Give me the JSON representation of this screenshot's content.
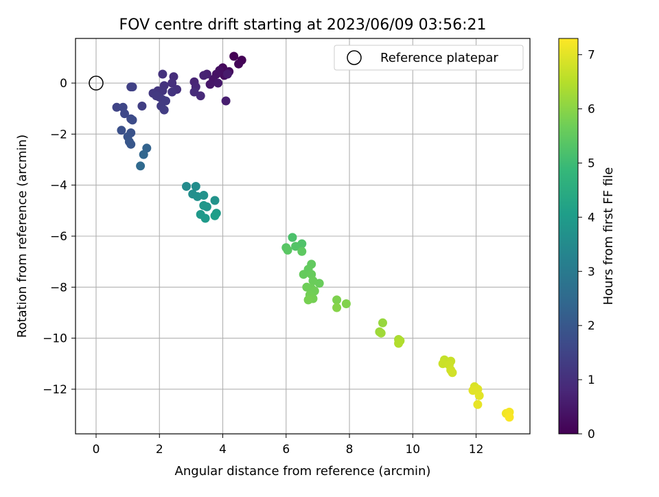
{
  "chart_data": {
    "type": "scatter",
    "title": "FOV centre drift starting at 2023/06/09 03:56:21",
    "xlabel": "Angular distance from reference (arcmin)",
    "ylabel": "Rotation from reference (arcmin)",
    "xlim": [
      -0.65,
      13.7
    ],
    "ylim": [
      -13.75,
      1.75
    ],
    "xticks": [
      0,
      2,
      4,
      6,
      8,
      10,
      12
    ],
    "yticks": [
      0,
      -2,
      -4,
      -6,
      -8,
      -10,
      -12
    ],
    "grid": true,
    "legend": {
      "placement": "top-right",
      "entries": [
        "Reference platepar"
      ]
    },
    "reference_point": {
      "x": 0,
      "y": 0,
      "label": "Reference platepar"
    },
    "colorbar": {
      "label": "Hours from first FF file",
      "range": [
        0,
        7.3
      ],
      "ticks": [
        0,
        1,
        2,
        3,
        4,
        5,
        6,
        7
      ],
      "colormap": "viridis",
      "colors": [
        "#440154",
        "#482878",
        "#3e4989",
        "#31688e",
        "#26828e",
        "#1f9e89",
        "#35b779",
        "#6ece58",
        "#b5de2b",
        "#fde725"
      ]
    },
    "series": [
      {
        "points": [
          [
            4.35,
            1.05,
            0.0
          ],
          [
            4.6,
            0.9,
            0.05
          ],
          [
            4.5,
            0.75,
            0.1
          ],
          [
            4.0,
            0.6,
            0.15
          ],
          [
            4.2,
            0.45,
            0.2
          ],
          [
            4.05,
            0.3,
            0.25
          ],
          [
            3.9,
            0.5,
            0.3
          ],
          [
            3.8,
            0.35,
            0.35
          ],
          [
            3.7,
            0.15,
            0.4
          ],
          [
            3.6,
            -0.05,
            0.45
          ],
          [
            3.85,
            0.0,
            0.5
          ],
          [
            4.15,
            0.35,
            0.55
          ],
          [
            4.1,
            -0.7,
            0.6
          ],
          [
            3.5,
            0.35,
            0.65
          ],
          [
            3.4,
            0.3,
            0.7
          ],
          [
            3.1,
            0.05,
            0.75
          ],
          [
            3.15,
            -0.15,
            0.8
          ],
          [
            3.3,
            -0.5,
            0.85
          ],
          [
            3.1,
            -0.35,
            0.9
          ],
          [
            2.45,
            0.25,
            0.95
          ],
          [
            2.4,
            0.0,
            1.0
          ],
          [
            2.55,
            -0.25,
            1.02
          ],
          [
            2.1,
            0.35,
            1.05
          ],
          [
            2.15,
            -0.1,
            1.08
          ],
          [
            2.4,
            -0.35,
            1.1
          ],
          [
            2.1,
            -0.3,
            1.12
          ],
          [
            1.95,
            -0.3,
            1.15
          ],
          [
            1.8,
            -0.4,
            1.18
          ],
          [
            2.0,
            -0.55,
            1.2
          ],
          [
            1.9,
            -0.5,
            1.22
          ],
          [
            2.1,
            -0.65,
            1.25
          ],
          [
            2.2,
            -0.7,
            1.28
          ],
          [
            2.05,
            -0.9,
            1.3
          ],
          [
            2.15,
            -1.05,
            1.32
          ],
          [
            1.45,
            -0.9,
            1.35
          ],
          [
            1.1,
            -0.15,
            1.4
          ],
          [
            1.15,
            -0.15,
            1.42
          ],
          [
            0.65,
            -0.95,
            1.5
          ],
          [
            0.85,
            -0.95,
            1.55
          ],
          [
            0.9,
            -1.2,
            1.6
          ],
          [
            1.1,
            -1.4,
            1.65
          ],
          [
            1.15,
            -1.45,
            1.7
          ],
          [
            0.8,
            -1.85,
            1.8
          ],
          [
            1.1,
            -1.95,
            1.85
          ],
          [
            1.0,
            -2.1,
            1.9
          ],
          [
            1.05,
            -2.3,
            1.95
          ],
          [
            1.1,
            -2.4,
            2.0
          ],
          [
            1.6,
            -2.55,
            2.3
          ],
          [
            1.5,
            -2.8,
            2.4
          ],
          [
            1.4,
            -3.25,
            2.5
          ],
          [
            2.85,
            -4.05,
            3.5
          ],
          [
            3.15,
            -4.05,
            3.55
          ],
          [
            3.05,
            -4.35,
            3.6
          ],
          [
            3.2,
            -4.45,
            3.65
          ],
          [
            3.4,
            -4.4,
            3.7
          ],
          [
            3.75,
            -4.6,
            3.75
          ],
          [
            3.5,
            -4.85,
            3.8
          ],
          [
            3.4,
            -4.8,
            3.85
          ],
          [
            3.3,
            -5.15,
            3.9
          ],
          [
            3.45,
            -5.3,
            3.95
          ],
          [
            3.8,
            -5.1,
            4.0
          ],
          [
            3.75,
            -5.2,
            4.05
          ],
          [
            6.2,
            -6.05,
            5.2
          ],
          [
            6.5,
            -6.3,
            5.25
          ],
          [
            6.3,
            -6.4,
            5.3
          ],
          [
            6.0,
            -6.45,
            5.35
          ],
          [
            6.05,
            -6.55,
            5.4
          ],
          [
            6.5,
            -6.6,
            5.45
          ],
          [
            6.8,
            -7.1,
            5.5
          ],
          [
            6.7,
            -7.3,
            5.52
          ],
          [
            6.55,
            -7.5,
            5.55
          ],
          [
            6.8,
            -7.5,
            5.58
          ],
          [
            7.05,
            -7.85,
            5.6
          ],
          [
            6.85,
            -7.75,
            5.62
          ],
          [
            6.8,
            -8.05,
            5.65
          ],
          [
            6.65,
            -8.0,
            5.68
          ],
          [
            6.9,
            -8.15,
            5.7
          ],
          [
            6.75,
            -8.3,
            5.72
          ],
          [
            6.85,
            -8.45,
            5.75
          ],
          [
            6.7,
            -8.5,
            5.78
          ],
          [
            7.6,
            -8.5,
            5.85
          ],
          [
            7.9,
            -8.65,
            5.9
          ],
          [
            7.6,
            -8.8,
            5.95
          ],
          [
            9.05,
            -9.4,
            6.15
          ],
          [
            8.95,
            -9.75,
            6.2
          ],
          [
            9.0,
            -9.8,
            6.25
          ],
          [
            9.55,
            -10.05,
            6.35
          ],
          [
            9.6,
            -10.1,
            6.4
          ],
          [
            9.55,
            -10.2,
            6.45
          ],
          [
            11.0,
            -10.85,
            6.65
          ],
          [
            11.2,
            -10.9,
            6.7
          ],
          [
            10.95,
            -11.0,
            6.72
          ],
          [
            11.15,
            -11.05,
            6.75
          ],
          [
            11.2,
            -11.25,
            6.78
          ],
          [
            11.25,
            -11.35,
            6.8
          ],
          [
            11.95,
            -11.9,
            6.9
          ],
          [
            12.05,
            -12.0,
            6.95
          ],
          [
            11.9,
            -12.05,
            6.98
          ],
          [
            12.1,
            -12.25,
            7.0
          ],
          [
            12.05,
            -12.6,
            7.05
          ],
          [
            12.95,
            -12.95,
            7.15
          ],
          [
            13.05,
            -12.9,
            7.2
          ],
          [
            13.05,
            -13.1,
            7.25
          ]
        ]
      }
    ]
  }
}
